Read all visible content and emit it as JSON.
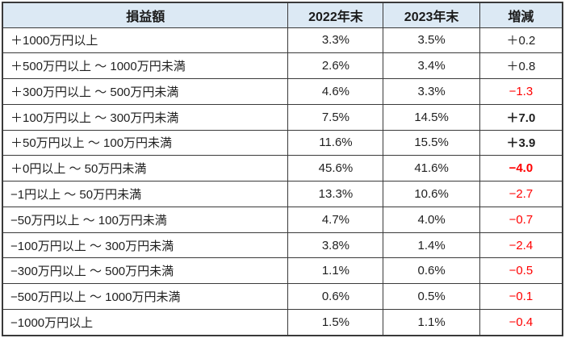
{
  "colors": {
    "header_bg": "#dce9f4",
    "border": "#3a3a3a",
    "text": "#1f1f1f",
    "negative": "#ff0000"
  },
  "table": {
    "headers": {
      "label": "損益額",
      "y2022": "2022年末",
      "y2023": "2023年末",
      "diff": "増減"
    },
    "rows": [
      {
        "label": "＋1000万円以上",
        "y2022": "3.3%",
        "y2023": "3.5%",
        "diff": "＋0.2",
        "sign": "pos",
        "bold": false
      },
      {
        "label": "＋500万円以上 ～ 1000万円未満",
        "y2022": "2.6%",
        "y2023": "3.4%",
        "diff": "＋0.8",
        "sign": "pos",
        "bold": false
      },
      {
        "label": "＋300万円以上 ～ 500万円未満",
        "y2022": "4.6%",
        "y2023": "3.3%",
        "diff": "−1.3",
        "sign": "neg",
        "bold": false
      },
      {
        "label": "＋100万円以上 ～ 300万円未満",
        "y2022": "7.5%",
        "y2023": "14.5%",
        "diff": "＋7.0",
        "sign": "pos",
        "bold": true
      },
      {
        "label": "＋50万円以上 ～ 100万円未満",
        "y2022": "11.6%",
        "y2023": "15.5%",
        "diff": "＋3.9",
        "sign": "pos",
        "bold": true
      },
      {
        "label": "＋0円以上 ～ 50万円未満",
        "y2022": "45.6%",
        "y2023": "41.6%",
        "diff": "−4.0",
        "sign": "neg",
        "bold": true
      },
      {
        "label": "−1円以上 ～ 50万円未満",
        "y2022": "13.3%",
        "y2023": "10.6%",
        "diff": "−2.7",
        "sign": "neg",
        "bold": false
      },
      {
        "label": "−50万円以上 ～ 100万円未満",
        "y2022": "4.7%",
        "y2023": "4.0%",
        "diff": "−0.7",
        "sign": "neg",
        "bold": false
      },
      {
        "label": "−100万円以上 ～ 300万円未満",
        "y2022": "3.8%",
        "y2023": "1.4%",
        "diff": "−2.4",
        "sign": "neg",
        "bold": false
      },
      {
        "label": "−300万円以上 ～ 500万円未満",
        "y2022": "1.1%",
        "y2023": "0.6%",
        "diff": "−0.5",
        "sign": "neg",
        "bold": false
      },
      {
        "label": "−500万円以上 ～ 1000万円未満",
        "y2022": "0.6%",
        "y2023": "0.5%",
        "diff": "−0.1",
        "sign": "neg",
        "bold": false
      },
      {
        "label": "−1000万円以上",
        "y2022": "1.5%",
        "y2023": "1.1%",
        "diff": "−0.4",
        "sign": "neg",
        "bold": false
      }
    ]
  }
}
